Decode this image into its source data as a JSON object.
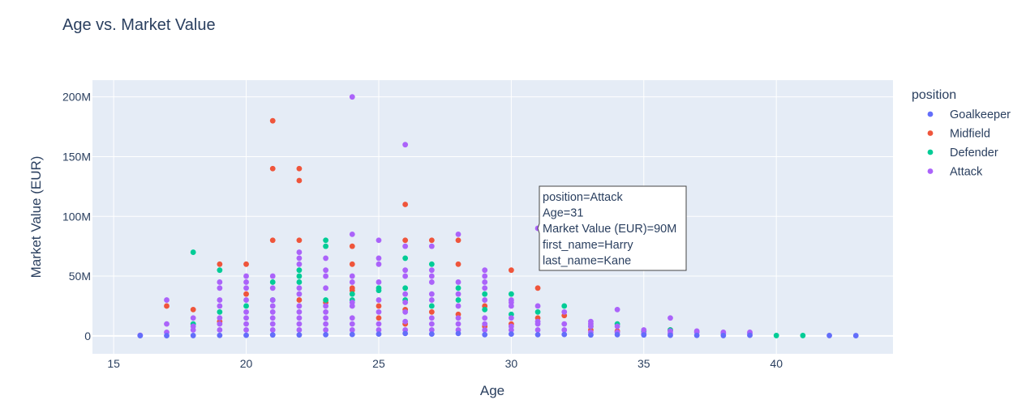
{
  "chart_data": {
    "type": "scatter",
    "title": "Age vs. Market Value",
    "xlabel": "Age",
    "ylabel": "Market Value (EUR)",
    "xlim": [
      14.2,
      44.4
    ],
    "ylim": [
      -15000000,
      214000000
    ],
    "x_ticks": [
      15,
      20,
      25,
      30,
      35,
      40
    ],
    "y_ticks": [
      0,
      50000000,
      100000000,
      150000000,
      200000000
    ],
    "y_tick_labels": [
      "0",
      "50M",
      "100M",
      "150M",
      "200M"
    ],
    "grid": true,
    "legend": {
      "title": "position",
      "placement": "right"
    },
    "series": [
      {
        "name": "Goalkeeper",
        "color": "#636efa",
        "points": [
          [
            16,
            0.2
          ],
          [
            42,
            0.3
          ],
          [
            43,
            0.2
          ],
          [
            39,
            0.5
          ],
          [
            38,
            0.3
          ],
          [
            37,
            0.4
          ],
          [
            36,
            0.5
          ],
          [
            35,
            0.8
          ],
          [
            34,
            1.0
          ],
          [
            33,
            0.8
          ],
          [
            32,
            1.2
          ],
          [
            31,
            1.0
          ],
          [
            30,
            1.5
          ],
          [
            29,
            1.0
          ],
          [
            28,
            2.0
          ],
          [
            27,
            1.5
          ],
          [
            26,
            2.0
          ],
          [
            25,
            1.5
          ],
          [
            24,
            1.2
          ],
          [
            23,
            1.0
          ],
          [
            22,
            0.8
          ],
          [
            21,
            0.8
          ],
          [
            20,
            0.5
          ],
          [
            19,
            0.4
          ],
          [
            18,
            0.3
          ],
          [
            17,
            0.2
          ]
        ]
      },
      {
        "name": "Midfield",
        "color": "#ef553b",
        "points": [
          [
            21,
            180
          ],
          [
            21,
            140
          ],
          [
            22,
            140
          ],
          [
            22,
            130
          ],
          [
            26,
            110
          ],
          [
            21,
            80
          ],
          [
            22,
            80
          ],
          [
            24,
            75
          ],
          [
            26,
            80
          ],
          [
            27,
            80
          ],
          [
            28,
            80
          ],
          [
            19,
            60
          ],
          [
            20,
            60
          ],
          [
            24,
            60
          ],
          [
            28,
            60
          ],
          [
            30,
            55
          ],
          [
            31,
            40
          ],
          [
            24,
            40
          ],
          [
            24,
            38
          ],
          [
            17,
            25
          ],
          [
            18,
            22
          ],
          [
            20,
            35
          ],
          [
            22,
            30
          ],
          [
            23,
            28
          ],
          [
            25,
            25
          ],
          [
            26,
            22
          ],
          [
            27,
            20
          ],
          [
            28,
            18
          ],
          [
            29,
            25
          ],
          [
            31,
            15
          ],
          [
            32,
            17
          ],
          [
            36,
            5
          ],
          [
            19,
            12
          ],
          [
            25,
            15
          ],
          [
            26,
            10
          ],
          [
            29,
            8
          ],
          [
            30,
            10
          ],
          [
            33,
            5
          ],
          [
            34,
            4
          ]
        ]
      },
      {
        "name": "Defender",
        "color": "#00cc96",
        "points": [
          [
            18,
            70
          ],
          [
            19,
            55
          ],
          [
            23,
            80
          ],
          [
            23,
            75
          ],
          [
            26,
            65
          ],
          [
            27,
            60
          ],
          [
            22,
            55
          ],
          [
            21,
            45
          ],
          [
            22,
            50
          ],
          [
            25,
            40
          ],
          [
            26,
            40
          ],
          [
            28,
            40
          ],
          [
            22,
            45
          ],
          [
            24,
            35
          ],
          [
            29,
            35
          ],
          [
            30,
            35
          ],
          [
            32,
            25
          ],
          [
            34,
            10
          ],
          [
            31,
            20
          ],
          [
            40,
            0.3
          ],
          [
            41,
            0.3
          ],
          [
            36,
            5
          ],
          [
            33,
            8
          ],
          [
            35,
            4
          ],
          [
            21,
            30
          ],
          [
            25,
            38
          ],
          [
            27,
            25
          ],
          [
            28,
            30
          ],
          [
            23,
            30
          ],
          [
            20,
            25
          ],
          [
            19,
            20
          ],
          [
            18,
            10
          ],
          [
            24,
            30
          ],
          [
            26,
            30
          ],
          [
            29,
            22
          ],
          [
            30,
            18
          ]
        ]
      },
      {
        "name": "Attack",
        "color": "#ab63fa",
        "points": [
          [
            24,
            200
          ],
          [
            26,
            160
          ],
          [
            24,
            85
          ],
          [
            28,
            85
          ],
          [
            25,
            80
          ],
          [
            26,
            75
          ],
          [
            27,
            75
          ],
          [
            22,
            70
          ],
          [
            31,
            90
          ],
          [
            22,
            65
          ],
          [
            23,
            65
          ],
          [
            25,
            65
          ],
          [
            21,
            50
          ],
          [
            22,
            60
          ],
          [
            25,
            60
          ],
          [
            26,
            55
          ],
          [
            27,
            55
          ],
          [
            29,
            55
          ],
          [
            29,
            50
          ],
          [
            27,
            50
          ],
          [
            28,
            45
          ],
          [
            20,
            50
          ],
          [
            20,
            45
          ],
          [
            19,
            45
          ],
          [
            19,
            40
          ],
          [
            20,
            40
          ],
          [
            21,
            40
          ],
          [
            22,
            40
          ],
          [
            23,
            55
          ],
          [
            24,
            50
          ],
          [
            23,
            50
          ],
          [
            26,
            50
          ],
          [
            27,
            45
          ],
          [
            29,
            45
          ],
          [
            29,
            40
          ],
          [
            30,
            30
          ],
          [
            30,
            25
          ],
          [
            31,
            25
          ],
          [
            33,
            10
          ],
          [
            33,
            12
          ],
          [
            34,
            22
          ],
          [
            36,
            15
          ],
          [
            17,
            30
          ],
          [
            17,
            10
          ],
          [
            18,
            15
          ],
          [
            19,
            30
          ],
          [
            19,
            25
          ],
          [
            20,
            30
          ],
          [
            21,
            30
          ],
          [
            22,
            35
          ],
          [
            23,
            40
          ],
          [
            24,
            45
          ],
          [
            25,
            45
          ],
          [
            26,
            35
          ],
          [
            27,
            35
          ],
          [
            28,
            35
          ],
          [
            29,
            30
          ],
          [
            30,
            28
          ],
          [
            31,
            12
          ],
          [
            32,
            20
          ],
          [
            33,
            8
          ],
          [
            34,
            8
          ],
          [
            35,
            5
          ],
          [
            36,
            4
          ],
          [
            37,
            4
          ],
          [
            38,
            3
          ],
          [
            39,
            3
          ],
          [
            38,
            2
          ],
          [
            39,
            2
          ],
          [
            37,
            3
          ],
          [
            36,
            2
          ],
          [
            35,
            2
          ],
          [
            34,
            3
          ],
          [
            33,
            3
          ],
          [
            32,
            5
          ],
          [
            31,
            5
          ],
          [
            30,
            5
          ],
          [
            29,
            5
          ],
          [
            28,
            5
          ],
          [
            27,
            5
          ],
          [
            26,
            5
          ],
          [
            25,
            5
          ],
          [
            24,
            5
          ],
          [
            23,
            5
          ],
          [
            22,
            5
          ],
          [
            21,
            5
          ],
          [
            20,
            5
          ],
          [
            19,
            5
          ],
          [
            18,
            5
          ],
          [
            17,
            3
          ],
          [
            16,
            0.5
          ],
          [
            24,
            25
          ],
          [
            25,
            20
          ],
          [
            26,
            20
          ],
          [
            27,
            15
          ],
          [
            28,
            15
          ],
          [
            29,
            15
          ],
          [
            30,
            15
          ],
          [
            31,
            10
          ],
          [
            32,
            10
          ],
          [
            23,
            20
          ],
          [
            22,
            20
          ],
          [
            21,
            20
          ],
          [
            20,
            20
          ],
          [
            19,
            15
          ],
          [
            18,
            8
          ],
          [
            24,
            15
          ],
          [
            25,
            10
          ],
          [
            26,
            12
          ],
          [
            27,
            10
          ],
          [
            28,
            10
          ],
          [
            29,
            10
          ],
          [
            30,
            8
          ],
          [
            21,
            10
          ],
          [
            22,
            10
          ],
          [
            23,
            10
          ],
          [
            20,
            10
          ],
          [
            19,
            10
          ],
          [
            24,
            10
          ],
          [
            23,
            15
          ],
          [
            22,
            15
          ],
          [
            21,
            15
          ],
          [
            20,
            15
          ],
          [
            28,
            25
          ],
          [
            27,
            30
          ],
          [
            26,
            28
          ],
          [
            25,
            30
          ],
          [
            24,
            28
          ],
          [
            23,
            25
          ],
          [
            22,
            25
          ],
          [
            21,
            25
          ]
        ]
      }
    ]
  },
  "hover": {
    "series": "Attack",
    "x": 31,
    "y": 90,
    "lines": [
      "position=Attack",
      "Age=31",
      "Market Value (EUR)=90M",
      "first_name=Harry",
      "last_name=Kane"
    ]
  }
}
